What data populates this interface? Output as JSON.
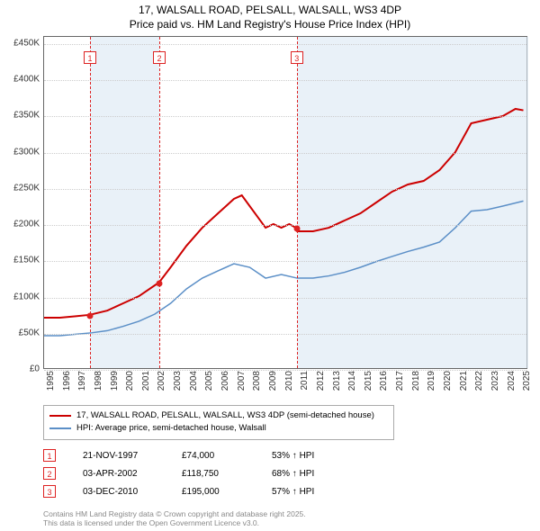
{
  "title_line1": "17, WALSALL ROAD, PELSALL, WALSALL, WS3 4DP",
  "title_line2": "Price paid vs. HM Land Registry's House Price Index (HPI)",
  "chart": {
    "type": "line",
    "xlim": [
      1995,
      2025.5
    ],
    "ylim": [
      0,
      460000
    ],
    "y_ticks": [
      0,
      50000,
      100000,
      150000,
      200000,
      250000,
      300000,
      350000,
      400000,
      450000
    ],
    "y_tick_labels": [
      "£0",
      "£50K",
      "£100K",
      "£150K",
      "£200K",
      "£250K",
      "£300K",
      "£350K",
      "£400K",
      "£450K"
    ],
    "x_ticks": [
      1995,
      1996,
      1997,
      1998,
      1999,
      2000,
      2001,
      2002,
      2003,
      2004,
      2005,
      2006,
      2007,
      2008,
      2009,
      2010,
      2011,
      2012,
      2013,
      2014,
      2015,
      2016,
      2017,
      2018,
      2019,
      2020,
      2021,
      2022,
      2023,
      2024,
      2025
    ],
    "background_color": "#ffffff",
    "grid_color": "#cccccc",
    "bands": [
      {
        "start": 1997.89,
        "end": 2002.26,
        "color": "#dbe7f3"
      },
      {
        "start": 2002.26,
        "end": 2010.92,
        "color": "#ffffff"
      },
      {
        "start": 2010.92,
        "end": 2025.5,
        "color": "#dbe7f3"
      }
    ],
    "series": [
      {
        "name": "price_paid",
        "label": "17, WALSALL ROAD, PELSALL, WALSALL, WS3 4DP (semi-detached house)",
        "color": "#cc0000",
        "line_width": 2,
        "data": [
          [
            1995,
            70000
          ],
          [
            1996,
            70000
          ],
          [
            1997,
            72000
          ],
          [
            1997.89,
            74000
          ],
          [
            1999,
            80000
          ],
          [
            2000,
            90000
          ],
          [
            2001,
            100000
          ],
          [
            2002,
            115000
          ],
          [
            2002.26,
            118750
          ],
          [
            2003,
            140000
          ],
          [
            2004,
            170000
          ],
          [
            2005,
            195000
          ],
          [
            2006,
            215000
          ],
          [
            2007,
            235000
          ],
          [
            2007.5,
            240000
          ],
          [
            2008,
            225000
          ],
          [
            2009,
            195000
          ],
          [
            2009.5,
            200000
          ],
          [
            2010,
            195000
          ],
          [
            2010.5,
            200000
          ],
          [
            2010.92,
            195000
          ],
          [
            2011,
            190000
          ],
          [
            2012,
            190000
          ],
          [
            2013,
            195000
          ],
          [
            2014,
            205000
          ],
          [
            2015,
            215000
          ],
          [
            2016,
            230000
          ],
          [
            2017,
            245000
          ],
          [
            2018,
            255000
          ],
          [
            2019,
            260000
          ],
          [
            2020,
            275000
          ],
          [
            2021,
            300000
          ],
          [
            2022,
            340000
          ],
          [
            2023,
            345000
          ],
          [
            2024,
            350000
          ],
          [
            2024.8,
            360000
          ],
          [
            2025.3,
            358000
          ]
        ]
      },
      {
        "name": "hpi",
        "label": "HPI: Average price, semi-detached house, Walsall",
        "color": "#5b8fc7",
        "line_width": 1.5,
        "data": [
          [
            1995,
            45000
          ],
          [
            1996,
            45000
          ],
          [
            1997,
            47000
          ],
          [
            1998,
            49000
          ],
          [
            1999,
            52000
          ],
          [
            2000,
            58000
          ],
          [
            2001,
            65000
          ],
          [
            2002,
            75000
          ],
          [
            2003,
            90000
          ],
          [
            2004,
            110000
          ],
          [
            2005,
            125000
          ],
          [
            2006,
            135000
          ],
          [
            2007,
            145000
          ],
          [
            2008,
            140000
          ],
          [
            2009,
            125000
          ],
          [
            2010,
            130000
          ],
          [
            2011,
            125000
          ],
          [
            2012,
            125000
          ],
          [
            2013,
            128000
          ],
          [
            2014,
            133000
          ],
          [
            2015,
            140000
          ],
          [
            2016,
            148000
          ],
          [
            2017,
            155000
          ],
          [
            2018,
            162000
          ],
          [
            2019,
            168000
          ],
          [
            2020,
            175000
          ],
          [
            2021,
            195000
          ],
          [
            2022,
            218000
          ],
          [
            2023,
            220000
          ],
          [
            2024,
            225000
          ],
          [
            2025.3,
            232000
          ]
        ]
      }
    ],
    "sale_markers": [
      {
        "num": "1",
        "year": 1997.89,
        "price": 74000
      },
      {
        "num": "2",
        "year": 2002.26,
        "price": 118750
      },
      {
        "num": "3",
        "year": 2010.92,
        "price": 195000
      }
    ]
  },
  "legend": {
    "items": [
      {
        "color": "#cc0000",
        "label": "17, WALSALL ROAD, PELSALL, WALSALL, WS3 4DP (semi-detached house)"
      },
      {
        "color": "#5b8fc7",
        "label": "HPI: Average price, semi-detached house, Walsall"
      }
    ]
  },
  "sales": [
    {
      "num": "1",
      "date": "21-NOV-1997",
      "price": "£74,000",
      "pct": "53% ↑ HPI"
    },
    {
      "num": "2",
      "date": "03-APR-2002",
      "price": "£118,750",
      "pct": "68% ↑ HPI"
    },
    {
      "num": "3",
      "date": "03-DEC-2010",
      "price": "£195,000",
      "pct": "57% ↑ HPI"
    }
  ],
  "footer_line1": "Contains HM Land Registry data © Crown copyright and database right 2025.",
  "footer_line2": "This data is licensed under the Open Government Licence v3.0."
}
